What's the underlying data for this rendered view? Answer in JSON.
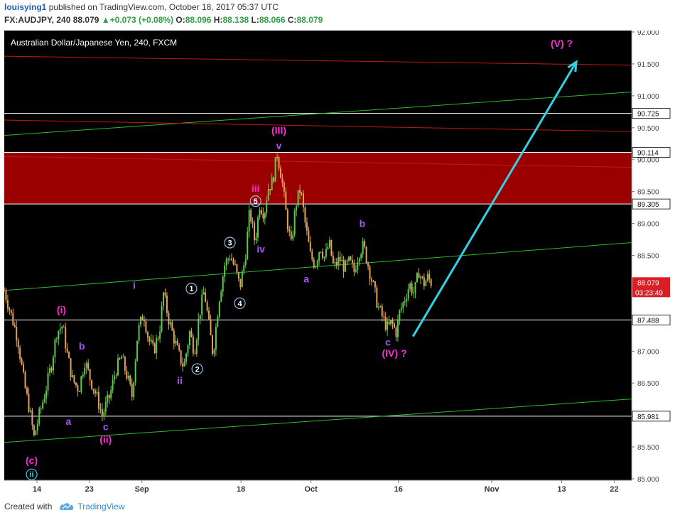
{
  "header": {
    "user": "louisying1",
    "published": "published on TradingView.com, October 18, 2017 05:37 UTC",
    "symbol": "FX:AUDJPY, 240",
    "last": "88.079",
    "change": "+0.073 (+0.08%)",
    "o_label": "O:",
    "o": "88.096",
    "h_label": "H:",
    "h": "88.138",
    "l_label": "L:",
    "l": "88.066",
    "c_label": "C:",
    "c": "88.079"
  },
  "footer": {
    "created": "Created with",
    "brand": "TradingView"
  },
  "colors": {
    "background": "#000000",
    "up": "#5ec94a",
    "down": "#e5a15a",
    "resistance_zone": "#9b0000",
    "channel": "#2fb82f",
    "red_line": "#c01818",
    "arrow": "#32d2e6",
    "magenta": "#ff2bd6",
    "purple": "#a855f7",
    "circle": "#8fbfe8",
    "price_tag": "#d91f26"
  },
  "chart_data": {
    "type": "candlestick",
    "title": "Australian Dollar/Japanese Yen, 240, FXCM",
    "ylim": [
      85.0,
      92.0
    ],
    "y_ticks": [
      "92.000",
      "91.500",
      "91.000",
      "90.500",
      "90.000",
      "89.500",
      "89.000",
      "88.500",
      "88.000",
      "87.500",
      "87.000",
      "86.500",
      "86.000",
      "85.500",
      "85.000"
    ],
    "x_ticks": [
      {
        "label": "14",
        "day": 14
      },
      {
        "label": "23",
        "day": 23
      },
      {
        "label": "Sep",
        "day": 32
      },
      {
        "label": "18",
        "day": 49
      },
      {
        "label": "Oct",
        "day": 61
      },
      {
        "label": "16",
        "day": 76
      },
      {
        "label": "Nov",
        "day": 92
      },
      {
        "label": "13",
        "day": 104
      },
      {
        "label": "22",
        "day": 113
      }
    ],
    "xlim": [
      8.4,
      116
    ],
    "day_reference": "Aug 1 = day 1",
    "price_path": [
      [
        8.4,
        87.95
      ],
      [
        9.5,
        87.6
      ],
      [
        10.7,
        87.2
      ],
      [
        11.8,
        86.5
      ],
      [
        12.7,
        86.1
      ],
      [
        13.5,
        85.65
      ],
      [
        14.4,
        86.0
      ],
      [
        15.4,
        86.35
      ],
      [
        16.5,
        86.8
      ],
      [
        17.4,
        87.3
      ],
      [
        18.4,
        87.4
      ],
      [
        19.2,
        86.95
      ],
      [
        20.1,
        86.55
      ],
      [
        21.2,
        86.4
      ],
      [
        22.2,
        86.85
      ],
      [
        23.2,
        86.55
      ],
      [
        24.2,
        86.3
      ],
      [
        25.2,
        86.0
      ],
      [
        26.5,
        86.3
      ],
      [
        27.5,
        86.7
      ],
      [
        28.5,
        86.9
      ],
      [
        29.5,
        86.6
      ],
      [
        30.3,
        86.3
      ],
      [
        31.3,
        87.3
      ],
      [
        32.3,
        87.6
      ],
      [
        33.1,
        87.2
      ],
      [
        34.0,
        87.0
      ],
      [
        35.0,
        87.3
      ],
      [
        35.7,
        87.9
      ],
      [
        36.6,
        87.5
      ],
      [
        37.5,
        87.2
      ],
      [
        38.3,
        86.95
      ],
      [
        39.2,
        86.75
      ],
      [
        40.2,
        87.3
      ],
      [
        41.0,
        87.0
      ],
      [
        41.9,
        87.6
      ],
      [
        42.7,
        87.95
      ],
      [
        43.5,
        87.4
      ],
      [
        44.2,
        86.95
      ],
      [
        45.2,
        87.8
      ],
      [
        46.2,
        88.35
      ],
      [
        47.1,
        88.5
      ],
      [
        48.0,
        88.3
      ],
      [
        48.8,
        88.0
      ],
      [
        49.7,
        88.45
      ],
      [
        50.5,
        89.2
      ],
      [
        51.4,
        88.7
      ],
      [
        52.2,
        89.3
      ],
      [
        53.0,
        89.15
      ],
      [
        53.6,
        89.55
      ],
      [
        54.4,
        89.65
      ],
      [
        55.2,
        90.1
      ],
      [
        56.0,
        89.7
      ],
      [
        56.8,
        89.1
      ],
      [
        57.6,
        88.65
      ],
      [
        58.4,
        89.3
      ],
      [
        59.2,
        89.55
      ],
      [
        60.0,
        89.0
      ],
      [
        60.9,
        88.5
      ],
      [
        61.7,
        88.35
      ],
      [
        62.6,
        88.65
      ],
      [
        63.4,
        88.45
      ],
      [
        64.1,
        88.7
      ],
      [
        64.9,
        88.3
      ],
      [
        65.9,
        88.45
      ],
      [
        66.8,
        88.3
      ],
      [
        67.6,
        88.4
      ],
      [
        68.4,
        88.25
      ],
      [
        69.2,
        88.55
      ],
      [
        70.0,
        88.65
      ],
      [
        70.8,
        88.35
      ],
      [
        71.6,
        88.05
      ],
      [
        72.5,
        87.7
      ],
      [
        73.4,
        87.5
      ],
      [
        74.2,
        87.35
      ],
      [
        74.8,
        87.45
      ],
      [
        75.6,
        87.3
      ],
      [
        76.2,
        87.6
      ],
      [
        77.0,
        87.8
      ],
      [
        77.9,
        88.05
      ],
      [
        78.7,
        87.9
      ],
      [
        79.5,
        88.25
      ],
      [
        80.3,
        88.05
      ],
      [
        81.0,
        88.15
      ],
      [
        81.6,
        88.08
      ]
    ],
    "horizontal_levels": [
      {
        "value": 90.725,
        "label": "90.725"
      },
      {
        "value": 90.114,
        "label": "90.114"
      },
      {
        "value": 89.305,
        "label": "89.305"
      },
      {
        "value": 87.488,
        "label": "87.488"
      },
      {
        "value": 85.981,
        "label": "85.981"
      }
    ],
    "resistance_zone": [
      89.305,
      90.114
    ],
    "current_price": {
      "label": "88.079",
      "value": 88.079,
      "countdown": "03:23:49"
    },
    "trend_lines": [
      {
        "kind": "channel",
        "from": [
          8.4,
          87.95
        ],
        "to": [
          116,
          88.7
        ]
      },
      {
        "kind": "channel",
        "from": [
          8.4,
          90.38
        ],
        "to": [
          116,
          91.06
        ]
      },
      {
        "kind": "channel",
        "from": [
          8.4,
          85.57
        ],
        "to": [
          116,
          86.25
        ]
      },
      {
        "kind": "red",
        "from": [
          8.4,
          91.62
        ],
        "to": [
          116,
          91.48
        ]
      },
      {
        "kind": "red",
        "from": [
          8.4,
          90.62
        ],
        "to": [
          116,
          90.44
        ]
      },
      {
        "kind": "red",
        "from": [
          8.4,
          90.05
        ],
        "to": [
          116,
          89.88
        ]
      }
    ],
    "arrow": {
      "from": [
        78.5,
        87.23
      ],
      "to": [
        106.5,
        91.53
      ]
    },
    "annotations": [
      {
        "text": "(V) ?",
        "day": 104,
        "price": 91.82,
        "style": "magenta"
      },
      {
        "text": "(III)",
        "day": 55.5,
        "price": 90.46,
        "style": "magenta"
      },
      {
        "text": "v",
        "day": 55.5,
        "price": 90.22,
        "style": "purple"
      },
      {
        "text": "iii",
        "day": 51.5,
        "price": 89.55,
        "style": "magenta"
      },
      {
        "text": "5",
        "day": 51.5,
        "price": 89.35,
        "style": "circle"
      },
      {
        "text": "iv",
        "day": 52.4,
        "price": 88.6,
        "style": "purple"
      },
      {
        "text": "3",
        "day": 47.1,
        "price": 88.7,
        "style": "circle"
      },
      {
        "text": "4",
        "day": 48.8,
        "price": 87.75,
        "style": "circle"
      },
      {
        "text": "1",
        "day": 40.5,
        "price": 87.98,
        "style": "circle"
      },
      {
        "text": "2",
        "day": 41.5,
        "price": 86.72,
        "style": "circle"
      },
      {
        "text": "i",
        "day": 30.7,
        "price": 88.03,
        "style": "purple"
      },
      {
        "text": "ii",
        "day": 38.5,
        "price": 86.54,
        "style": "purple"
      },
      {
        "text": "(i)",
        "day": 18.2,
        "price": 87.65,
        "style": "magenta"
      },
      {
        "text": "b",
        "day": 21.7,
        "price": 87.08,
        "style": "purple"
      },
      {
        "text": "a",
        "day": 19.4,
        "price": 85.9,
        "style": "purple"
      },
      {
        "text": "c",
        "day": 25.8,
        "price": 85.82,
        "style": "purple"
      },
      {
        "text": "(ii)",
        "day": 25.8,
        "price": 85.62,
        "style": "magenta"
      },
      {
        "text": "(c)",
        "day": 13.1,
        "price": 85.29,
        "style": "magenta"
      },
      {
        "text": "ii",
        "day": 13.1,
        "price": 85.07,
        "style": "circle-cyan"
      },
      {
        "text": "a",
        "day": 60.2,
        "price": 88.13,
        "style": "purple"
      },
      {
        "text": "b",
        "day": 69.8,
        "price": 89.0,
        "style": "purple"
      },
      {
        "text": "c",
        "day": 74.2,
        "price": 87.14,
        "style": "purple"
      },
      {
        "text": "(IV) ?",
        "day": 75.3,
        "price": 86.97,
        "style": "magenta"
      }
    ]
  }
}
